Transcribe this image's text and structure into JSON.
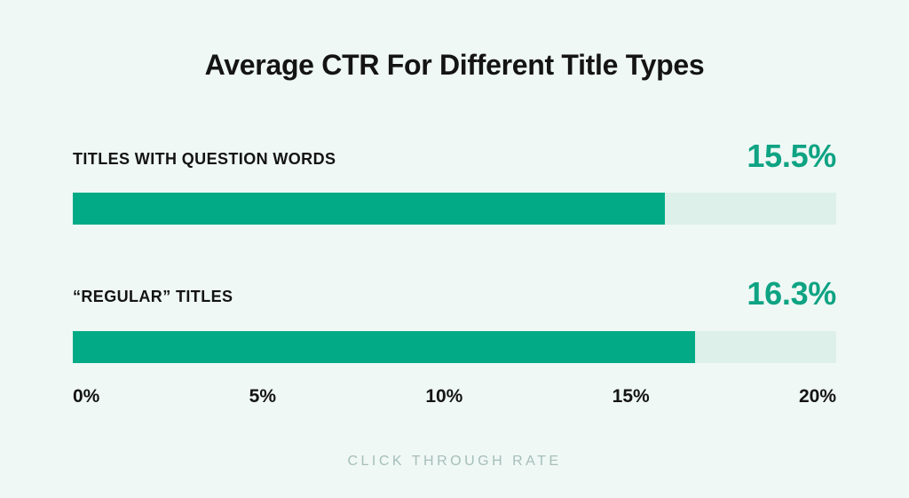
{
  "chart_data": {
    "type": "bar",
    "orientation": "horizontal",
    "title": "Average CTR For Different Title Types",
    "categories": [
      "TITLES WITH QUESTION WORDS",
      "“REGULAR” TITLES"
    ],
    "values": [
      15.5,
      16.3
    ],
    "value_labels": [
      "15.5%",
      "16.3%"
    ],
    "xlabel": "CLICK THROUGH RATE",
    "xlim": [
      0,
      20
    ],
    "x_ticks": [
      "0%",
      "5%",
      "10%",
      "15%",
      "20%"
    ],
    "grid": false,
    "legend": false,
    "colors": {
      "background": "#EFF8F5",
      "title_text": "#141414",
      "category_text": "#141414",
      "bar_fill": "#02AB85",
      "bar_track": "#DEF0EA",
      "value_text": "#0EA383",
      "axis_text": "#141414",
      "footer_text": "#A6BEB9"
    }
  }
}
